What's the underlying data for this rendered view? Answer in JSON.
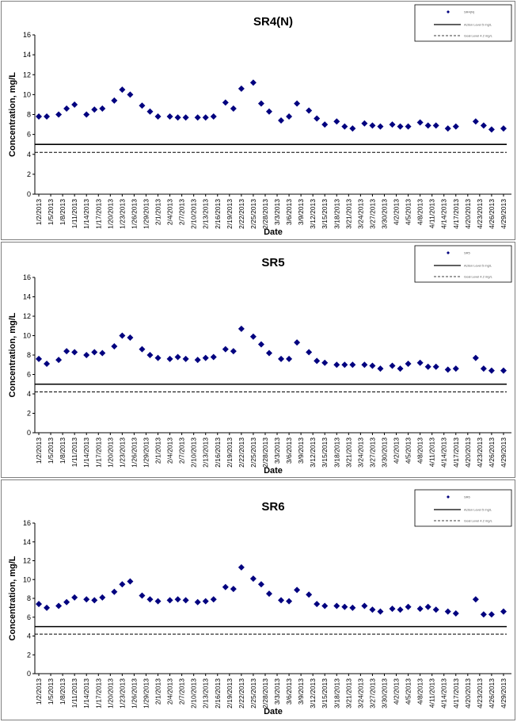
{
  "colors": {
    "marker": "#00007f",
    "action_level": "#000000",
    "goal_level": "#000000",
    "panel_border": "#7f7f7f"
  },
  "chart_data": [
    {
      "type": "scatter",
      "title": "SR4(N)",
      "xlabel": "Date",
      "ylabel": "Concentration, mg/L",
      "ylim": [
        0,
        16
      ],
      "yticks": [
        "0",
        "2",
        "4",
        "6",
        "8",
        "10",
        "12",
        "14",
        "16"
      ],
      "xlim": [
        "2013-01-01",
        "2013-05-01"
      ],
      "xticks": [
        "1/2/2013",
        "1/5/2013",
        "1/8/2013",
        "1/11/2013",
        "1/14/2013",
        "1/17/2013",
        "1/20/2013",
        "1/23/2013",
        "1/26/2013",
        "1/29/2013",
        "2/1/2013",
        "2/4/2013",
        "2/7/2013",
        "2/10/2013",
        "2/13/2013",
        "2/16/2013",
        "2/19/2013",
        "2/22/2013",
        "2/25/2013",
        "2/28/2013",
        "3/3/2013",
        "3/6/2013",
        "3/9/2013",
        "3/12/2013",
        "3/15/2013",
        "3/18/2013",
        "3/21/2013",
        "3/24/2013",
        "3/27/2013",
        "3/30/2013",
        "4/2/2013",
        "4/5/2013",
        "4/8/2013",
        "4/11/2013",
        "4/14/2013",
        "4/17/2013",
        "4/20/2013",
        "4/23/2013",
        "4/26/2013",
        "4/29/2013"
      ],
      "grid": false,
      "legend_position": "top-right",
      "legend": [
        "SR4(N)",
        "Action Level 5 mg/L",
        "Goal Level 4.2 mg/L"
      ],
      "reference_lines": [
        {
          "y": 5.0,
          "style": "solid"
        },
        {
          "y": 4.2,
          "style": "dashed"
        }
      ],
      "x": [
        "2013-01-02",
        "2013-01-04",
        "2013-01-07",
        "2013-01-09",
        "2013-01-11",
        "2013-01-14",
        "2013-01-16",
        "2013-01-18",
        "2013-01-21",
        "2013-01-23",
        "2013-01-25",
        "2013-01-28",
        "2013-01-30",
        "2013-02-01",
        "2013-02-04",
        "2013-02-06",
        "2013-02-08",
        "2013-02-11",
        "2013-02-13",
        "2013-02-15",
        "2013-02-18",
        "2013-02-20",
        "2013-02-22",
        "2013-02-25",
        "2013-02-27",
        "2013-03-01",
        "2013-03-04",
        "2013-03-06",
        "2013-03-08",
        "2013-03-11",
        "2013-03-13",
        "2013-03-15",
        "2013-03-18",
        "2013-03-20",
        "2013-03-22",
        "2013-03-25",
        "2013-03-27",
        "2013-03-29",
        "2013-04-01",
        "2013-04-03",
        "2013-04-05",
        "2013-04-08",
        "2013-04-10",
        "2013-04-12",
        "2013-04-15",
        "2013-04-17",
        "2013-04-22",
        "2013-04-24",
        "2013-04-26",
        "2013-04-29"
      ],
      "values": [
        7.8,
        7.8,
        8.0,
        8.6,
        9.0,
        8.0,
        8.5,
        8.6,
        9.4,
        10.5,
        10.0,
        8.9,
        8.3,
        7.8,
        7.8,
        7.7,
        7.7,
        7.7,
        7.7,
        7.8,
        9.2,
        8.6,
        10.6,
        11.2,
        9.1,
        8.3,
        7.4,
        7.8,
        9.1,
        8.4,
        7.6,
        7.0,
        7.3,
        6.8,
        6.6,
        7.1,
        6.9,
        6.8,
        7.0,
        6.8,
        6.8,
        7.2,
        6.9,
        6.9,
        6.6,
        6.8,
        7.3,
        6.9,
        6.5,
        6.6
      ]
    },
    {
      "type": "scatter",
      "title": "SR5",
      "xlabel": "Date",
      "ylabel": "Concentration, mg/L",
      "ylim": [
        0,
        16
      ],
      "yticks": [
        "0",
        "2",
        "4",
        "6",
        "8",
        "10",
        "12",
        "14",
        "16"
      ],
      "xlim": [
        "2013-01-01",
        "2013-05-01"
      ],
      "xticks": [
        "1/2/2013",
        "1/5/2013",
        "1/8/2013",
        "1/11/2013",
        "1/14/2013",
        "1/17/2013",
        "1/20/2013",
        "1/23/2013",
        "1/26/2013",
        "1/29/2013",
        "2/1/2013",
        "2/4/2013",
        "2/7/2013",
        "2/10/2013",
        "2/13/2013",
        "2/16/2013",
        "2/19/2013",
        "2/22/2013",
        "2/25/2013",
        "2/28/2013",
        "3/3/2013",
        "3/6/2013",
        "3/9/2013",
        "3/12/2013",
        "3/15/2013",
        "3/18/2013",
        "3/21/2013",
        "3/24/2013",
        "3/27/2013",
        "3/30/2013",
        "4/2/2013",
        "4/5/2013",
        "4/8/2013",
        "4/11/2013",
        "4/14/2013",
        "4/17/2013",
        "4/20/2013",
        "4/23/2013",
        "4/26/2013",
        "4/29/2013"
      ],
      "grid": false,
      "legend_position": "top-right",
      "legend": [
        "SR5",
        "Action Level 5 mg/L",
        "Goal Level 4.2 mg/L"
      ],
      "reference_lines": [
        {
          "y": 5.0,
          "style": "solid"
        },
        {
          "y": 4.2,
          "style": "dashed"
        }
      ],
      "x": [
        "2013-01-02",
        "2013-01-04",
        "2013-01-07",
        "2013-01-09",
        "2013-01-11",
        "2013-01-14",
        "2013-01-16",
        "2013-01-18",
        "2013-01-21",
        "2013-01-23",
        "2013-01-25",
        "2013-01-28",
        "2013-01-30",
        "2013-02-01",
        "2013-02-04",
        "2013-02-06",
        "2013-02-08",
        "2013-02-11",
        "2013-02-13",
        "2013-02-15",
        "2013-02-18",
        "2013-02-20",
        "2013-02-22",
        "2013-02-25",
        "2013-02-27",
        "2013-03-01",
        "2013-03-04",
        "2013-03-06",
        "2013-03-08",
        "2013-03-11",
        "2013-03-13",
        "2013-03-15",
        "2013-03-18",
        "2013-03-20",
        "2013-03-22",
        "2013-03-25",
        "2013-03-27",
        "2013-03-29",
        "2013-04-01",
        "2013-04-03",
        "2013-04-05",
        "2013-04-08",
        "2013-04-10",
        "2013-04-12",
        "2013-04-15",
        "2013-04-17",
        "2013-04-22",
        "2013-04-24",
        "2013-04-26",
        "2013-04-29"
      ],
      "values": [
        7.6,
        7.1,
        7.5,
        8.4,
        8.3,
        8.0,
        8.3,
        8.2,
        8.9,
        10.0,
        9.8,
        8.6,
        8.0,
        7.7,
        7.6,
        7.8,
        7.6,
        7.5,
        7.7,
        7.8,
        8.6,
        8.4,
        10.7,
        9.9,
        9.1,
        8.2,
        7.6,
        7.6,
        9.3,
        8.3,
        7.4,
        7.2,
        7.0,
        7.0,
        7.0,
        7.0,
        6.9,
        6.6,
        6.9,
        6.6,
        7.1,
        7.2,
        6.8,
        6.8,
        6.5,
        6.6,
        7.7,
        6.6,
        6.4,
        6.4
      ]
    },
    {
      "type": "scatter",
      "title": "SR6",
      "xlabel": "Date",
      "ylabel": "Concentration, mg/L",
      "ylim": [
        0,
        16
      ],
      "yticks": [
        "0",
        "2",
        "4",
        "6",
        "8",
        "10",
        "12",
        "14",
        "16"
      ],
      "xlim": [
        "2013-01-01",
        "2013-05-01"
      ],
      "xticks": [
        "1/2/2013",
        "1/5/2013",
        "1/8/2013",
        "1/11/2013",
        "1/14/2013",
        "1/17/2013",
        "1/20/2013",
        "1/23/2013",
        "1/26/2013",
        "1/29/2013",
        "2/1/2013",
        "2/4/2013",
        "2/7/2013",
        "2/10/2013",
        "2/13/2013",
        "2/16/2013",
        "2/19/2013",
        "2/22/2013",
        "2/25/2013",
        "2/28/2013",
        "3/3/2013",
        "3/6/2013",
        "3/9/2013",
        "3/12/2013",
        "3/15/2013",
        "3/18/2013",
        "3/21/2013",
        "3/24/2013",
        "3/27/2013",
        "3/30/2013",
        "4/2/2013",
        "4/5/2013",
        "4/8/2013",
        "4/11/2013",
        "4/14/2013",
        "4/17/2013",
        "4/20/2013",
        "4/23/2013",
        "4/26/2013",
        "4/29/2013"
      ],
      "grid": false,
      "legend_position": "top-right",
      "legend": [
        "SR6",
        "Action Level 5 mg/L",
        "Goal Level 4.2 mg/L"
      ],
      "reference_lines": [
        {
          "y": 5.0,
          "style": "solid"
        },
        {
          "y": 4.2,
          "style": "dashed"
        }
      ],
      "x": [
        "2013-01-02",
        "2013-01-04",
        "2013-01-07",
        "2013-01-09",
        "2013-01-11",
        "2013-01-14",
        "2013-01-16",
        "2013-01-18",
        "2013-01-21",
        "2013-01-23",
        "2013-01-25",
        "2013-01-28",
        "2013-01-30",
        "2013-02-01",
        "2013-02-04",
        "2013-02-06",
        "2013-02-08",
        "2013-02-11",
        "2013-02-13",
        "2013-02-15",
        "2013-02-18",
        "2013-02-20",
        "2013-02-22",
        "2013-02-25",
        "2013-02-27",
        "2013-03-01",
        "2013-03-04",
        "2013-03-06",
        "2013-03-08",
        "2013-03-11",
        "2013-03-13",
        "2013-03-15",
        "2013-03-18",
        "2013-03-20",
        "2013-03-22",
        "2013-03-25",
        "2013-03-27",
        "2013-03-29",
        "2013-04-01",
        "2013-04-03",
        "2013-04-05",
        "2013-04-08",
        "2013-04-10",
        "2013-04-12",
        "2013-04-15",
        "2013-04-17",
        "2013-04-22",
        "2013-04-24",
        "2013-04-26",
        "2013-04-29"
      ],
      "values": [
        7.4,
        7.0,
        7.2,
        7.6,
        8.1,
        7.9,
        7.8,
        8.1,
        8.7,
        9.5,
        9.8,
        8.3,
        7.9,
        7.7,
        7.8,
        7.9,
        7.8,
        7.6,
        7.7,
        7.9,
        9.2,
        9.0,
        11.3,
        10.1,
        9.5,
        8.5,
        7.8,
        7.7,
        8.9,
        8.4,
        7.4,
        7.2,
        7.2,
        7.1,
        7.0,
        7.2,
        6.8,
        6.6,
        6.9,
        6.8,
        7.1,
        6.9,
        7.1,
        6.8,
        6.6,
        6.4,
        7.9,
        6.3,
        6.3,
        6.6
      ]
    }
  ]
}
